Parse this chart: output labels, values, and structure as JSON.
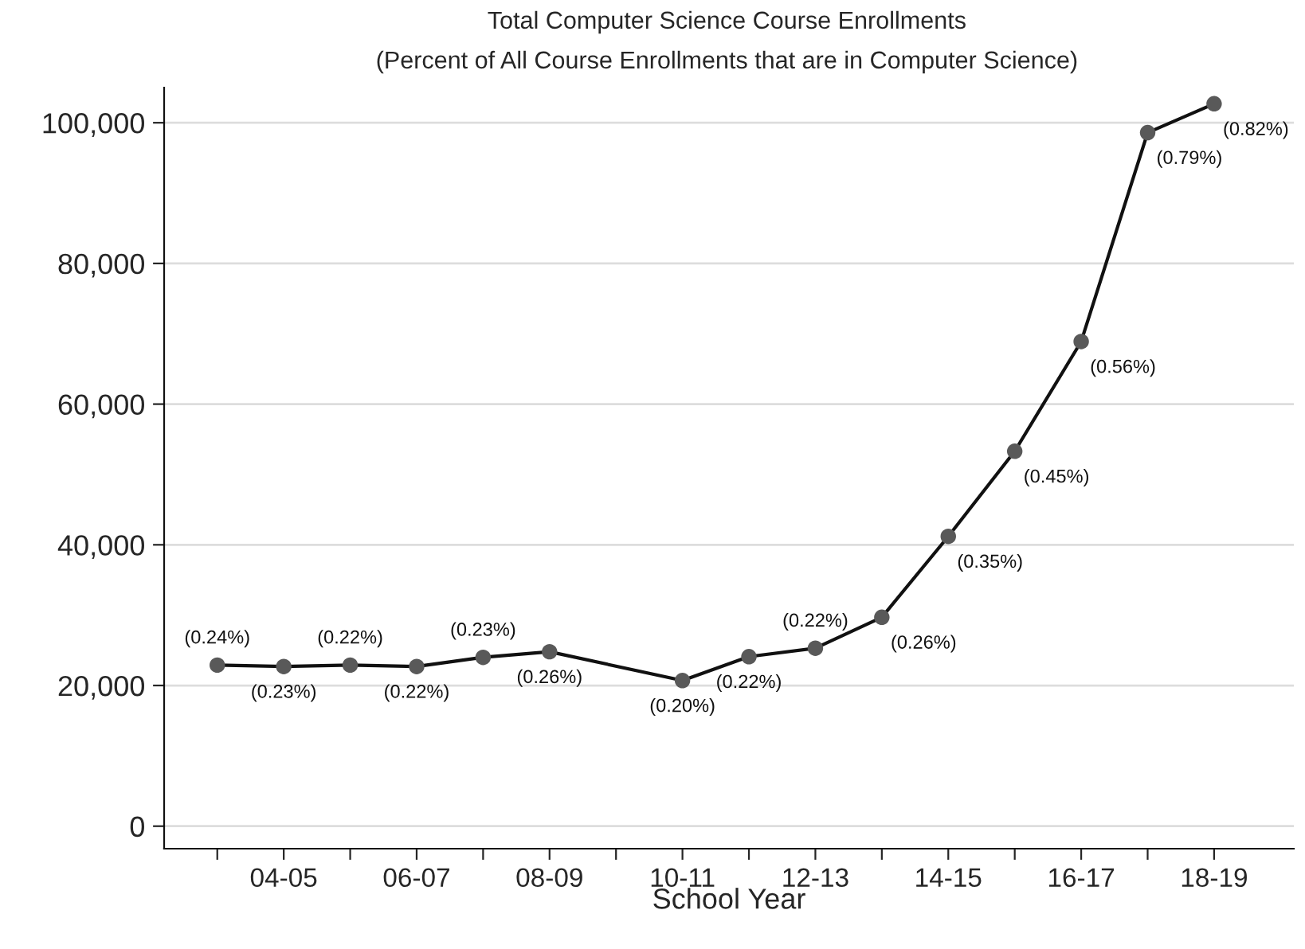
{
  "chart_data": {
    "type": "line",
    "title": "Total Computer Science Course Enrollments",
    "subtitle": "(Percent of All Course Enrollments that are in Computer Science)",
    "xlabel": "School Year",
    "categories": [
      null,
      "04-05",
      null,
      "06-07",
      null,
      "08-09",
      null,
      "10-11",
      null,
      "12-13",
      null,
      "14-15",
      null,
      "16-17",
      null,
      "18-19"
    ],
    "series": [
      {
        "color": "#595959",
        "values": [
          22900,
          22700,
          22900,
          22700,
          24000,
          24800,
          null,
          20700,
          24100,
          25300,
          29700,
          41200,
          53300,
          68900,
          98600,
          102700
        ]
      }
    ],
    "annotations": [
      "(0.24%)",
      "(0.23%)",
      "(0.22%)",
      "(0.22%)",
      "(0.23%)",
      "(0.26%)",
      "(0.20%)",
      "(0.22%)",
      "(0.22%)",
      "(0.26%)",
      "(0.35%)",
      "(0.45%)",
      "(0.56%)",
      "(0.79%)",
      "(0.82%)"
    ],
    "ylim": [
      -3200,
      105000
    ],
    "yticks": [
      {
        "value": 0,
        "label": "0"
      },
      {
        "value": 20000,
        "label": "20,000"
      },
      {
        "value": 40000,
        "label": "40,000"
      },
      {
        "value": 60000,
        "label": "60,000"
      },
      {
        "value": 80000,
        "label": "80,000"
      },
      {
        "value": 100000,
        "label": "100,000"
      }
    ],
    "grid": "y",
    "marker": "circle",
    "line_style": "solid"
  }
}
